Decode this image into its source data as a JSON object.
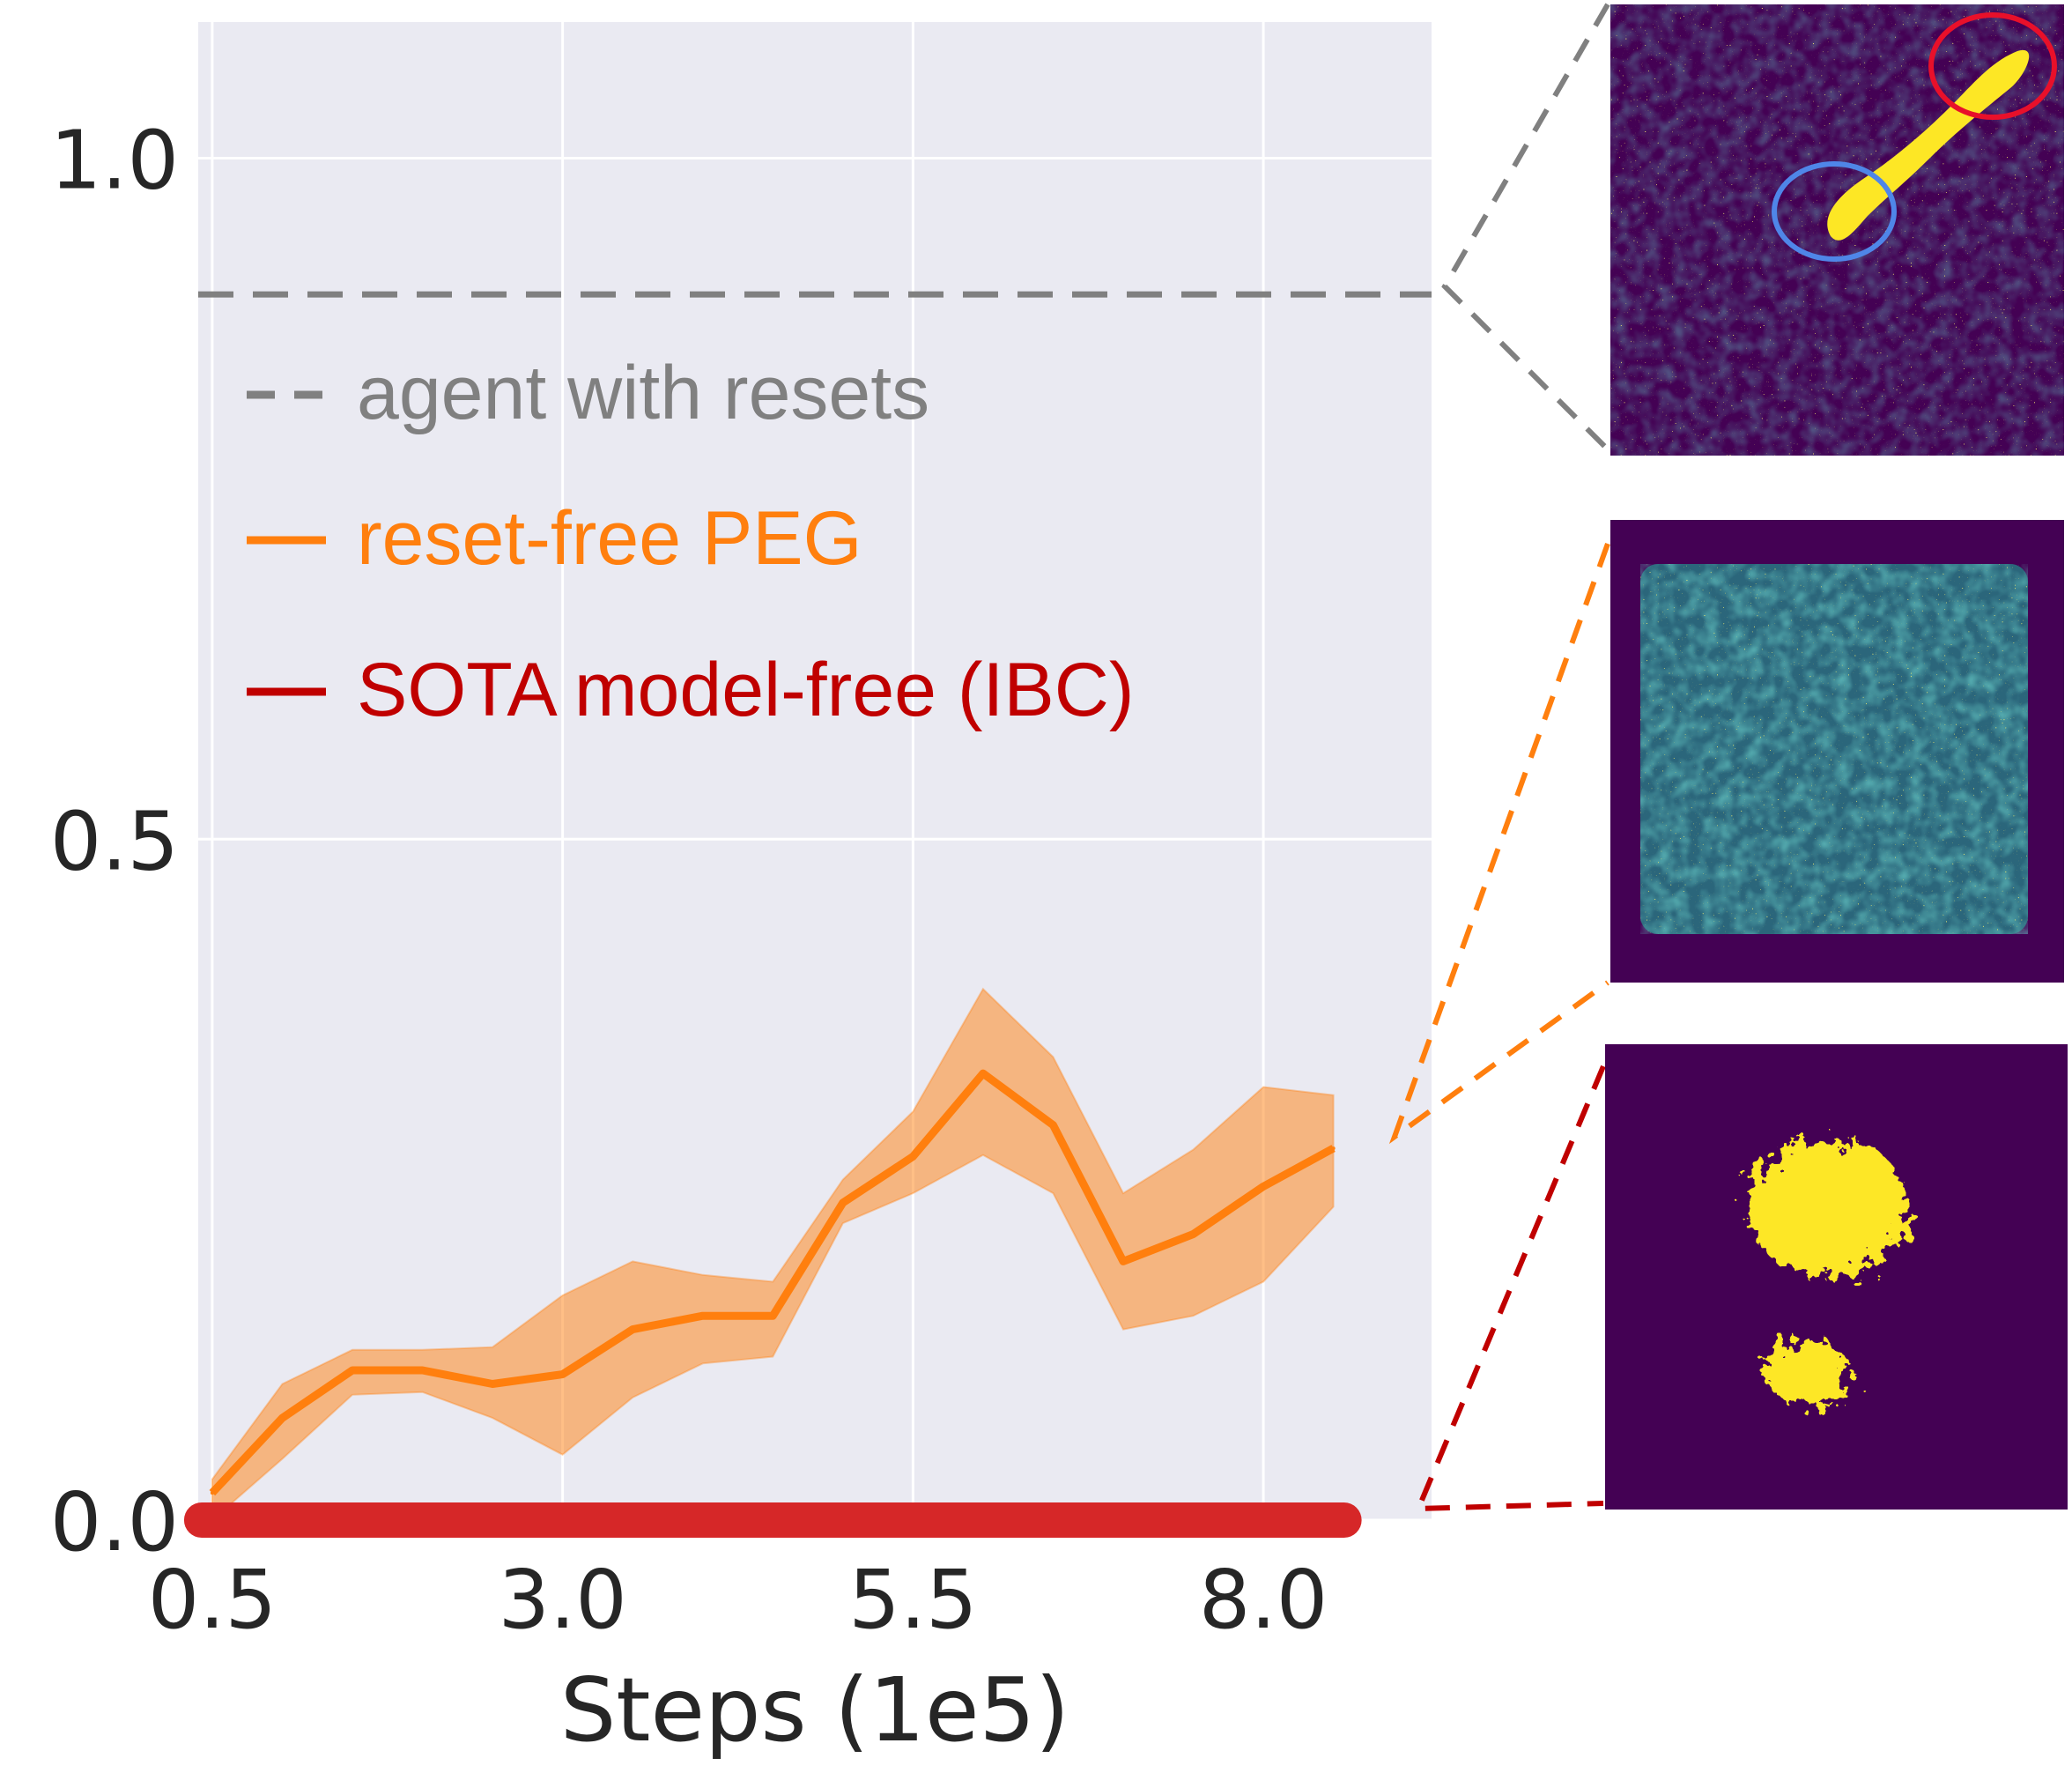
{
  "colors": {
    "plot_background": "#eaeaf2",
    "grid": "#ffffff",
    "reference": "#808080",
    "peg": "#ff7f0e",
    "ibc": "#d62728",
    "ibc_legend": "#c00000",
    "heatmap_background": "#440154",
    "heatmap_hot": "#fde725",
    "heatmap_mid": "#21918c",
    "circle_start": "#4f86e8",
    "circle_goal": "#e8102a"
  },
  "chart_data": {
    "type": "line",
    "title": "",
    "xlabel": "Steps (1e5)",
    "ylabel": "",
    "xlim": [
      0.4,
      9.2
    ],
    "ylim": [
      0.0,
      1.1
    ],
    "xticks": [
      0.5,
      3.0,
      5.5,
      8.0
    ],
    "xtick_labels": [
      "0.5",
      "3.0",
      "5.5",
      "8.0"
    ],
    "yticks": [
      0.0,
      0.5,
      1.0
    ],
    "ytick_labels": [
      "0.0",
      "0.5",
      "1.0"
    ],
    "grid": true,
    "legend_position": "upper-left",
    "legend": [
      {
        "label": "agent with resets",
        "style": "dashed",
        "color": "#808080"
      },
      {
        "label": "reset-free PEG",
        "style": "solid",
        "color": "#ff7f0e"
      },
      {
        "label": "SOTA model-free (IBC)",
        "style": "solid",
        "color": "#c00000"
      }
    ],
    "series": [
      {
        "name": "agent with resets",
        "style": "dashed",
        "constant": 0.9
      },
      {
        "name": "reset-free PEG",
        "style": "solid",
        "x": [
          0.5,
          1.0,
          1.5,
          2.0,
          2.5,
          3.0,
          3.5,
          4.0,
          4.5,
          5.0,
          5.5,
          6.0,
          6.5,
          7.0,
          7.5,
          8.0,
          8.5
        ],
        "y": [
          0.02,
          0.075,
          0.11,
          0.11,
          0.1,
          0.107,
          0.14,
          0.15,
          0.15,
          0.233,
          0.267,
          0.328,
          0.29,
          0.19,
          0.21,
          0.245,
          0.273
        ],
        "y_lower": [
          0.0,
          0.045,
          0.092,
          0.094,
          0.075,
          0.048,
          0.09,
          0.115,
          0.12,
          0.218,
          0.24,
          0.268,
          0.24,
          0.14,
          0.15,
          0.175,
          0.23
        ],
        "y_upper": [
          0.03,
          0.1,
          0.125,
          0.125,
          0.127,
          0.165,
          0.19,
          0.18,
          0.175,
          0.25,
          0.3,
          0.39,
          0.34,
          0.24,
          0.272,
          0.318,
          0.312
        ]
      },
      {
        "name": "SOTA model-free (IBC)",
        "style": "solid",
        "x": [
          0.5,
          8.5
        ],
        "y": [
          0.0,
          0.0
        ]
      }
    ]
  },
  "panels": [
    {
      "name": "agent-with-resets-visitation",
      "pattern": "diagonal-trajectory"
    },
    {
      "name": "reset-free-peg-visitation",
      "pattern": "uniform-square"
    },
    {
      "name": "ibc-visitation",
      "pattern": "two-clusters"
    }
  ]
}
